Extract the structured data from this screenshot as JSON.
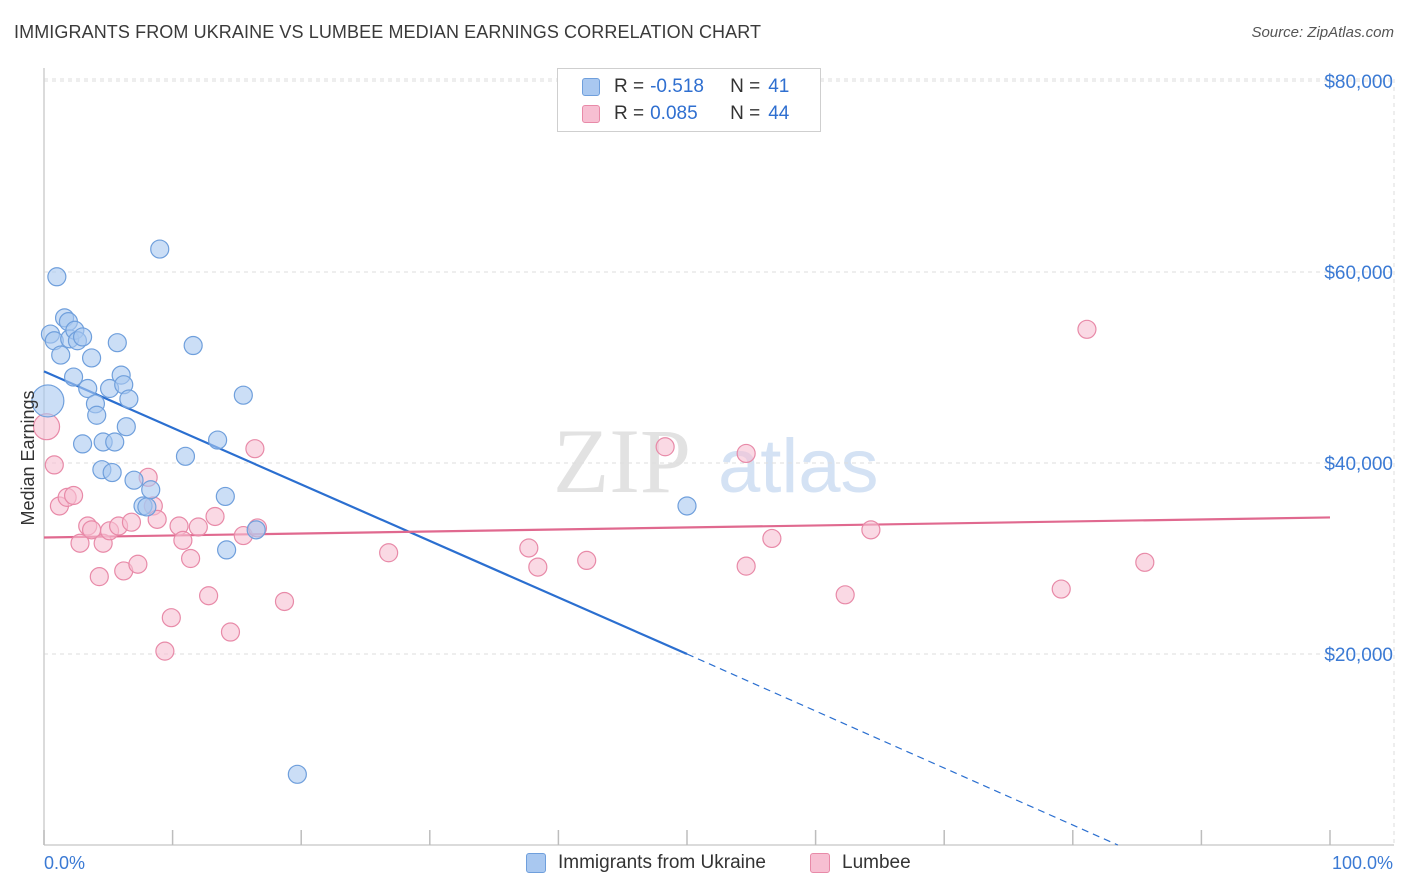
{
  "header": {
    "title": "IMMIGRANTS FROM UKRAINE VS LUMBEE MEDIAN EARNINGS CORRELATION CHART",
    "source": "Source: ZipAtlas.com"
  },
  "watermark": {
    "part1": "ZIP",
    "part2": "atlas"
  },
  "legend_top": {
    "rows": [
      {
        "r_label": "R =",
        "r_value": "-0.518",
        "n_label": "N =",
        "n_value": "41"
      },
      {
        "r_label": "R =",
        "r_value": "0.085",
        "n_label": "N =",
        "n_value": "44"
      }
    ]
  },
  "legend_bottom": {
    "items": [
      {
        "label": "Immigrants from Ukraine"
      },
      {
        "label": "Lumbee"
      }
    ]
  },
  "colors": {
    "ukraine_fill": "#a9c8f0",
    "ukraine_stroke": "#6f9fdc",
    "ukraine_line": "#2b6fd0",
    "lumbee_fill": "#f7bfd2",
    "lumbee_stroke": "#e88aa8",
    "lumbee_line": "#e0698f",
    "tick_text": "#3b7ad4",
    "grid": "#dedede"
  },
  "chart_data": {
    "type": "scatter",
    "title": "IMMIGRANTS FROM UKRAINE VS LUMBEE MEDIAN EARNINGS CORRELATION CHART",
    "xlabel": "",
    "ylabel": "Median Earnings",
    "xlim": [
      0,
      100
    ],
    "ylim": [
      0,
      80000
    ],
    "x_tick_labels": [
      "0.0%",
      "100.0%"
    ],
    "y_ticks": [
      20000,
      40000,
      60000,
      80000
    ],
    "y_tick_labels": [
      "$20,000",
      "$40,000",
      "$60,000",
      "$80,000"
    ],
    "grid": true,
    "legend_position": "top-center",
    "series": [
      {
        "name": "Immigrants from Ukraine",
        "r": -0.518,
        "n": 41,
        "points": [
          [
            0.3,
            46500,
            16
          ],
          [
            0.5,
            53500,
            9
          ],
          [
            0.8,
            52800,
            9
          ],
          [
            1.0,
            59500,
            9
          ],
          [
            1.3,
            51300,
            9
          ],
          [
            1.6,
            55200,
            9
          ],
          [
            1.9,
            54800,
            9
          ],
          [
            2.0,
            53000,
            9
          ],
          [
            2.3,
            49000,
            9
          ],
          [
            2.4,
            53900,
            9
          ],
          [
            2.6,
            52800,
            9
          ],
          [
            3.0,
            53200,
            9
          ],
          [
            3.0,
            42000,
            9
          ],
          [
            3.4,
            47800,
            9
          ],
          [
            3.7,
            51000,
            9
          ],
          [
            4.0,
            46200,
            9
          ],
          [
            4.1,
            45000,
            9
          ],
          [
            4.5,
            39300,
            9
          ],
          [
            4.6,
            42200,
            9
          ],
          [
            5.1,
            47800,
            9
          ],
          [
            5.3,
            39000,
            9
          ],
          [
            5.5,
            42200,
            9
          ],
          [
            5.7,
            52600,
            9
          ],
          [
            6.0,
            49200,
            9
          ],
          [
            6.2,
            48200,
            9
          ],
          [
            6.4,
            43800,
            9
          ],
          [
            6.6,
            46700,
            9
          ],
          [
            7.0,
            38200,
            9
          ],
          [
            7.7,
            35500,
            9
          ],
          [
            8.0,
            35400,
            9
          ],
          [
            8.3,
            37200,
            9
          ],
          [
            9.0,
            62400,
            9
          ],
          [
            11.0,
            40700,
            9
          ],
          [
            11.6,
            52300,
            9
          ],
          [
            13.5,
            42400,
            9
          ],
          [
            14.1,
            36500,
            9
          ],
          [
            14.2,
            30900,
            9
          ],
          [
            15.5,
            47100,
            9
          ],
          [
            16.5,
            33000,
            9
          ],
          [
            19.7,
            7400,
            9
          ],
          [
            50.0,
            35500,
            9
          ]
        ],
        "trend": {
          "x1": 0,
          "y1": 49600,
          "x2": 50,
          "y2": 20000,
          "dashed_to_x": 83.5,
          "dashed_to_y": 0
        }
      },
      {
        "name": "Lumbee",
        "r": 0.085,
        "n": 44,
        "points": [
          [
            0.2,
            43800,
            13
          ],
          [
            0.8,
            39800,
            9
          ],
          [
            1.2,
            35500,
            9
          ],
          [
            1.8,
            36400,
            9
          ],
          [
            2.3,
            36600,
            9
          ],
          [
            2.8,
            31600,
            9
          ],
          [
            3.4,
            33400,
            9
          ],
          [
            3.7,
            33000,
            9
          ],
          [
            4.3,
            28100,
            9
          ],
          [
            4.6,
            31600,
            9
          ],
          [
            5.1,
            32900,
            9
          ],
          [
            5.8,
            33400,
            9
          ],
          [
            6.2,
            28700,
            9
          ],
          [
            6.8,
            33800,
            9
          ],
          [
            7.3,
            29400,
            9
          ],
          [
            8.1,
            38500,
            9
          ],
          [
            8.5,
            35500,
            9
          ],
          [
            8.8,
            34100,
            9
          ],
          [
            9.4,
            20300,
            9
          ],
          [
            9.9,
            23800,
            9
          ],
          [
            10.5,
            33400,
            9
          ],
          [
            10.8,
            31900,
            9
          ],
          [
            11.4,
            30000,
            9
          ],
          [
            12.0,
            33300,
            9
          ],
          [
            12.8,
            26100,
            9
          ],
          [
            13.3,
            34400,
            9
          ],
          [
            14.5,
            22300,
            9
          ],
          [
            15.5,
            32400,
            9
          ],
          [
            16.4,
            41500,
            9
          ],
          [
            16.6,
            33200,
            9
          ],
          [
            18.7,
            25500,
            9
          ],
          [
            26.8,
            30600,
            9
          ],
          [
            37.7,
            31100,
            9
          ],
          [
            38.4,
            29100,
            9
          ],
          [
            42.2,
            29800,
            9
          ],
          [
            48.3,
            41700,
            9
          ],
          [
            54.6,
            41000,
            9
          ],
          [
            54.6,
            29200,
            9
          ],
          [
            56.6,
            32100,
            9
          ],
          [
            62.3,
            26200,
            9
          ],
          [
            64.3,
            33000,
            9
          ],
          [
            79.1,
            26800,
            9
          ],
          [
            81.1,
            54000,
            9
          ],
          [
            85.6,
            29600,
            9
          ]
        ],
        "trend": {
          "x1": 0,
          "y1": 32200,
          "x2": 100,
          "y2": 34300
        }
      }
    ]
  }
}
